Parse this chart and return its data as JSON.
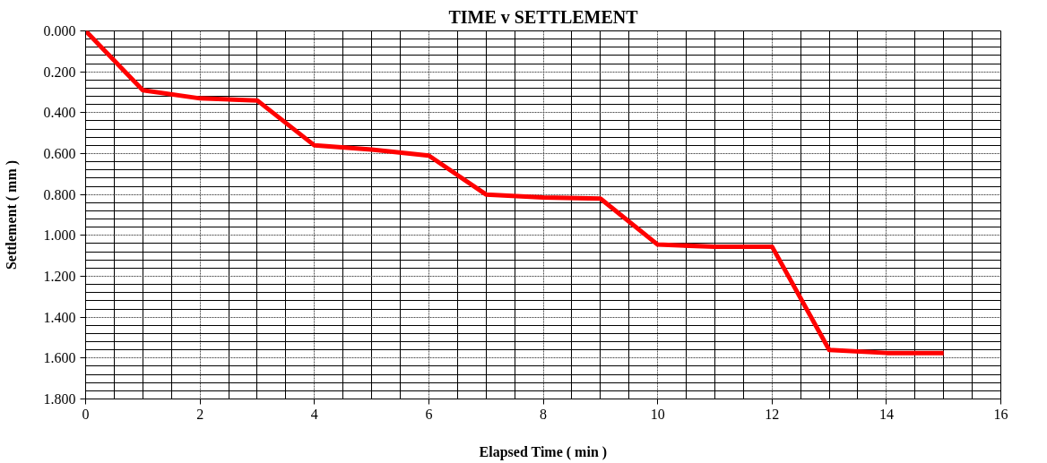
{
  "chart_data": {
    "type": "line",
    "title": "TIME v SETTLEMENT",
    "xlabel": "Elapsed Time ( min )",
    "ylabel": "Settlement ( mm )",
    "x": [
      0,
      1,
      2,
      3,
      4,
      5,
      6,
      7,
      8,
      9,
      10,
      11,
      12,
      13,
      14,
      15
    ],
    "series": [
      {
        "color": "#ff0000",
        "values": [
          0,
          0.29,
          0.33,
          0.34,
          0.56,
          0.58,
          0.61,
          0.8,
          0.815,
          0.82,
          1.045,
          1.055,
          1.055,
          1.56,
          1.575,
          1.575
        ]
      }
    ],
    "xlim": [
      0,
      16
    ],
    "xticks": [
      0,
      2,
      4,
      6,
      8,
      10,
      12,
      14,
      16
    ],
    "ylim": [
      1.8,
      0
    ],
    "yticks": [
      {
        "value": 0,
        "label": "0.000"
      },
      {
        "value": 0.2,
        "label": "0.200"
      },
      {
        "value": 0.4,
        "label": "0.400"
      },
      {
        "value": 0.6,
        "label": "0.600"
      },
      {
        "value": 0.8,
        "label": "0.800"
      },
      {
        "value": 1.0,
        "label": "1.000"
      },
      {
        "value": 1.2,
        "label": "1.200"
      },
      {
        "value": 1.4,
        "label": "1.400"
      },
      {
        "value": 1.6,
        "label": "1.600"
      },
      {
        "value": 1.8,
        "label": "1.800"
      }
    ],
    "grid": true,
    "marker": "none",
    "line_style": "solid"
  }
}
